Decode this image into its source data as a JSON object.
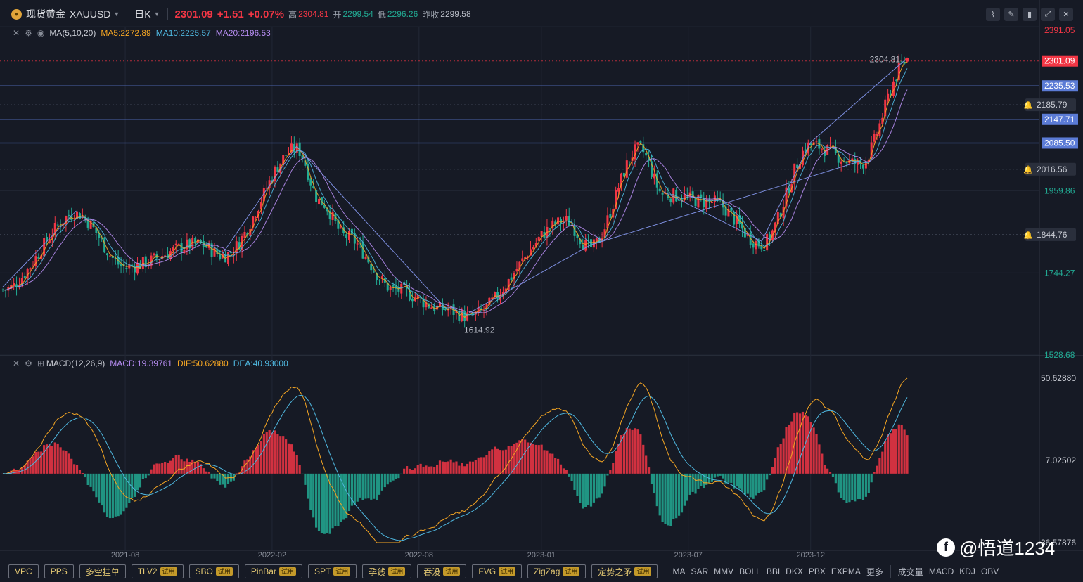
{
  "header": {
    "symbol_name": "现货黄金",
    "symbol_code": "XAUUSD",
    "period": "日K",
    "last": "2301.09",
    "change": "+1.51",
    "change_pct": "+0.07%",
    "high_label": "高",
    "high": "2304.81",
    "open_label": "开",
    "open": "2299.54",
    "low_label": "低",
    "low": "2296.26",
    "prev_label": "昨收",
    "prev": "2299.58"
  },
  "ma_legend": {
    "name": "MA(5,10,20)",
    "ma5": "MA5:2272.89",
    "ma10": "MA10:2225.57",
    "ma20": "MA20:2196.53"
  },
  "macd_legend": {
    "name": "MACD(12,26,9)",
    "macd": "MACD:19.39761",
    "dif": "DIF:50.62880",
    "dea": "DEA:40.93000"
  },
  "price_axis": {
    "ticks": [
      2391.05,
      1959.86,
      1744.27,
      1528.68
    ],
    "alert_marks": [
      2185.79,
      2016.56,
      1844.76
    ],
    "hlines": [
      2235.53,
      2147.71,
      2085.5
    ],
    "last_price": 2301.09,
    "high_annotation": "2304.81",
    "low_annotation": "1614.92"
  },
  "macd_axis": {
    "ticks": [
      "50.62880",
      "7.02502",
      "-36.57876"
    ]
  },
  "time_axis": [
    "2021-08",
    "2022-02",
    "2022-08",
    "2023-01",
    "2023-07",
    "2023-12"
  ],
  "toolbar": {
    "tools": [
      {
        "label": "VPC",
        "trial": false
      },
      {
        "label": "PPS",
        "trial": false
      },
      {
        "label": "多空挂单",
        "trial": false
      },
      {
        "label": "TLV2",
        "trial": true
      },
      {
        "label": "SBO",
        "trial": true
      },
      {
        "label": "PinBar",
        "trial": true
      },
      {
        "label": "SPT",
        "trial": true
      },
      {
        "label": "孕线",
        "trial": true
      },
      {
        "label": "吞没",
        "trial": true
      },
      {
        "label": "FVG",
        "trial": true
      },
      {
        "label": "ZigZag",
        "trial": true
      },
      {
        "label": "定势之矛",
        "trial": true
      }
    ],
    "trial_label": "试用",
    "indicators": [
      "MA",
      "SAR",
      "MMV",
      "BOLL",
      "BBI",
      "DKX",
      "PBX",
      "EXPMA",
      "更多"
    ],
    "sub_indicators": [
      "成交量",
      "MACD",
      "KDJ",
      "OBV"
    ]
  },
  "watermark": "@悟道1234",
  "colors": {
    "bull": "#f23645",
    "bear": "#22ab94",
    "ma5": "#f5a623",
    "ma10": "#4fb8e0",
    "ma20": "#b58cf0",
    "hline": "#5b7bd6"
  },
  "chart_data": {
    "type": "candlestick",
    "title": "现货黄金 XAUUSD 日K",
    "x_range": [
      "2021-03",
      "2024-04"
    ],
    "price_range": [
      1528.68,
      2391.05
    ],
    "anchors": [
      {
        "date": "2021-03",
        "close": 1700
      },
      {
        "date": "2021-06",
        "close": 1900
      },
      {
        "date": "2021-08",
        "close": 1760
      },
      {
        "date": "2021-11",
        "close": 1820
      },
      {
        "date": "2021-12",
        "close": 1790
      },
      {
        "date": "2022-03",
        "close": 2070
      },
      {
        "date": "2022-04",
        "close": 1930
      },
      {
        "date": "2022-05",
        "close": 1840
      },
      {
        "date": "2022-07",
        "close": 1700
      },
      {
        "date": "2022-09",
        "close": 1650
      },
      {
        "date": "2022-10",
        "close": 1630
      },
      {
        "date": "2023-02",
        "close": 1880
      },
      {
        "date": "2023-03",
        "close": 1810
      },
      {
        "date": "2023-05",
        "close": 2070
      },
      {
        "date": "2023-06",
        "close": 1950
      },
      {
        "date": "2023-08",
        "close": 1930
      },
      {
        "date": "2023-10",
        "close": 1820
      },
      {
        "date": "2023-12",
        "close": 2080
      },
      {
        "date": "2024-02",
        "close": 2030
      },
      {
        "date": "2024-04",
        "close": 2301.09
      }
    ],
    "macd": {
      "dif_last": 50.6288,
      "dea_last": 40.93,
      "macd_last": 19.39761,
      "range": [
        -36.57876,
        50.6288
      ]
    }
  }
}
